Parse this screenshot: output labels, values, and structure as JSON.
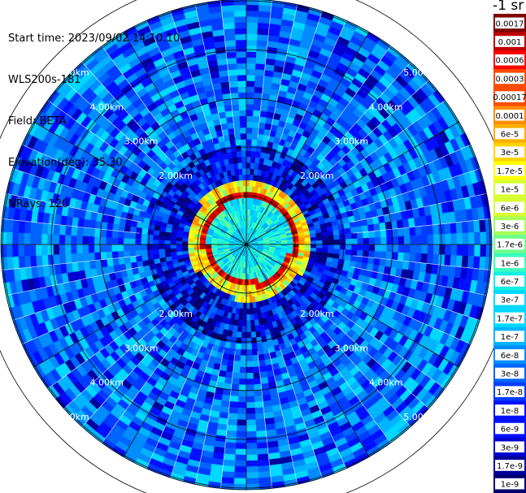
{
  "info": {
    "start_time": "Start time: 2023/09/02 14:10:10",
    "instrument": "WLS200s-181",
    "field": "Field: BETA",
    "elevation": "Elevation(deg): 35.30",
    "nrays": "NRays: 120"
  },
  "chart_data": {
    "type": "heatmap",
    "projection": "polar (PPI scan)",
    "field": "BETA",
    "n_rays": 120,
    "elevation_deg": 35.3,
    "range_km": [
      0,
      5.7
    ],
    "range_ring_labels": [
      "2.00km",
      "3.00km",
      "4.00km",
      "5.00km"
    ],
    "range_ring_values_km": [
      2,
      3,
      4,
      5
    ],
    "extra_rings_km": [
      1,
      5.5
    ],
    "grid": true,
    "radial_spokes_deg": [
      0,
      30,
      60,
      90,
      120,
      150,
      180,
      210,
      240,
      270,
      300,
      330
    ],
    "colorbar": {
      "title": "-1 sr",
      "scale": "log",
      "tick_labels": [
        "0.0017",
        "0.001",
        "0.0006",
        "0.0003",
        "0.00017",
        "0.0001",
        "6e-5",
        "3e-5",
        "1.7e-5",
        "1e-5",
        "6e-6",
        "3e-6",
        "1.7e-6",
        "1e-6",
        "6e-7",
        "3e-7",
        "1.7e-7",
        "1e-7",
        "6e-8",
        "3e-8",
        "1.7e-8",
        "1e-8",
        "6e-9",
        "3e-9",
        "1.7e-9",
        "1e-9"
      ],
      "colors": [
        "#7f0000",
        "#c00000",
        "#ff0000",
        "#ff4a00",
        "#ff8c00",
        "#ffb000",
        "#ffd200",
        "#ffff00",
        "#d8ff30",
        "#a6ff5a",
        "#6cff8c",
        "#38ffbe",
        "#12f0e6",
        "#00d8ff",
        "#00b4ff",
        "#008cff",
        "#0064ff",
        "#003cff",
        "#0010ff",
        "#0000d2",
        "#00009c",
        "#000070"
      ]
    },
    "annotation": "strongest backscatter ring near 0.8 km range"
  }
}
